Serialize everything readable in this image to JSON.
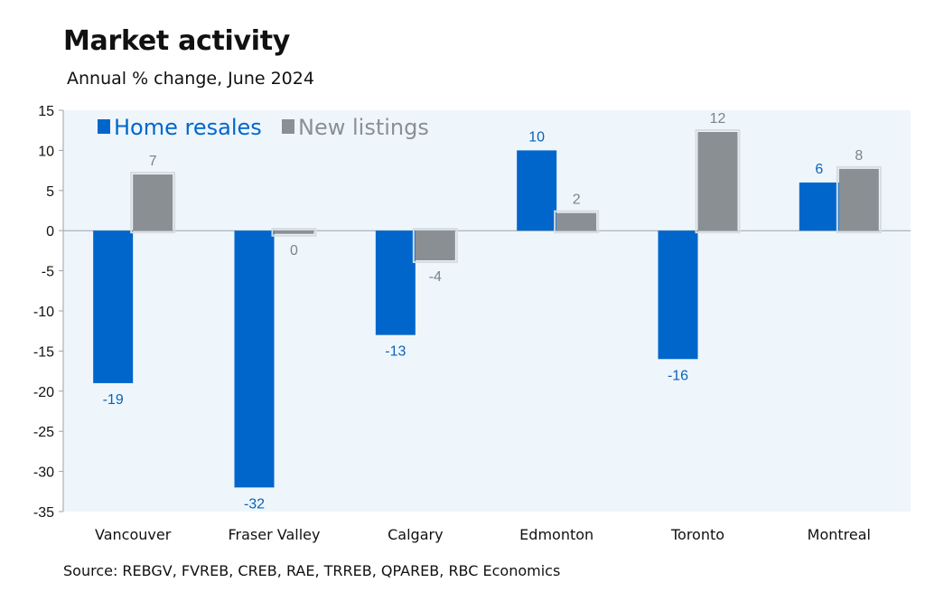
{
  "title": "Market activity",
  "subtitle": "Annual % change, June 2024",
  "source": "Source: REBGV, FVREB, CREB, RAE, TRREB, QPAREB, RBC Economics",
  "colors": {
    "home_resales": "#0066cc",
    "new_listings": "#8a8f94",
    "plot_background": "#eef6fc",
    "home_label": "#0a62b8",
    "listing_label": "#7d8489"
  },
  "chart_data": {
    "type": "bar",
    "title": "Market activity",
    "subtitle": "Annual % change, June 2024",
    "categories": [
      "Vancouver",
      "Fraser Valley",
      "Calgary",
      "Edmonton",
      "Toronto",
      "Montreal"
    ],
    "series": [
      {
        "name": "Home resales",
        "values": [
          -19,
          -32,
          -13,
          10,
          -16,
          6
        ],
        "labels": [
          "-19",
          "-32",
          "-13",
          "10",
          "-16",
          "6"
        ]
      },
      {
        "name": "New listings",
        "values": [
          7,
          -0.4,
          -3.7,
          2.2,
          12.3,
          7.7
        ],
        "labels": [
          "7",
          "0",
          "-4",
          "2",
          "12",
          "8"
        ]
      }
    ],
    "ylim": [
      -35,
      15
    ],
    "yticks": [
      "15",
      "10",
      "5",
      "0",
      "-5",
      "-10",
      "-15",
      "-20",
      "-25",
      "-30",
      "-35"
    ],
    "legend_position": "top-left",
    "grid": false
  }
}
